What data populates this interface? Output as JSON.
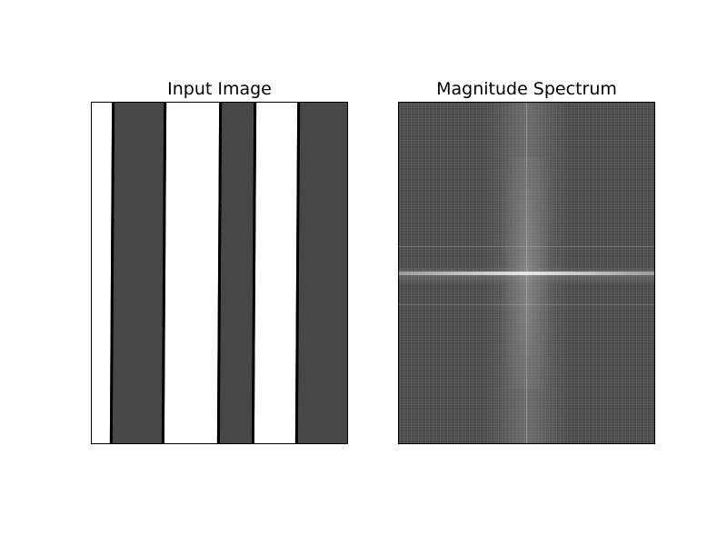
{
  "figure": {
    "left_panel": {
      "title": "Input Image",
      "background_color": "#ffffff",
      "stripe_color": "#474747",
      "edge_color": "#000000"
    },
    "right_panel": {
      "title": "Magnitude Spectrum",
      "colormap": "gray"
    }
  }
}
